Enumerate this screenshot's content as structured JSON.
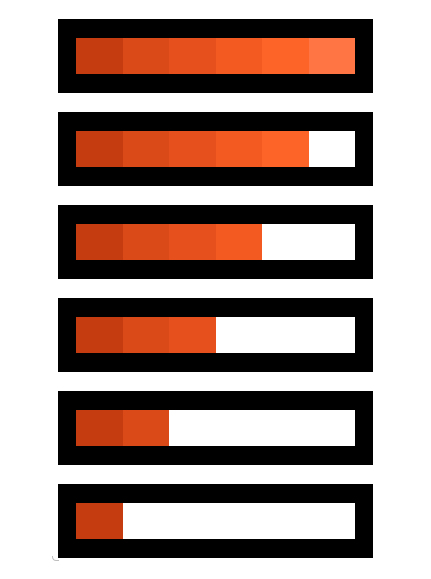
{
  "segment_colors": [
    "#c43c10",
    "#d94a18",
    "#e5501c",
    "#f25a22",
    "#fc6428",
    "#ff7644"
  ],
  "segments_total": 6,
  "bars": [
    {
      "filled_segments": 6,
      "fill_fraction": 1.0
    },
    {
      "filled_segments": 5,
      "fill_fraction": 0.833
    },
    {
      "filled_segments": 4,
      "fill_fraction": 0.667
    },
    {
      "filled_segments": 3,
      "fill_fraction": 0.5
    },
    {
      "filled_segments": 2,
      "fill_fraction": 0.333
    },
    {
      "filled_segments": 1,
      "fill_fraction": 0.167
    }
  ],
  "frame_color": "#000000",
  "track_color": "#ffffff"
}
